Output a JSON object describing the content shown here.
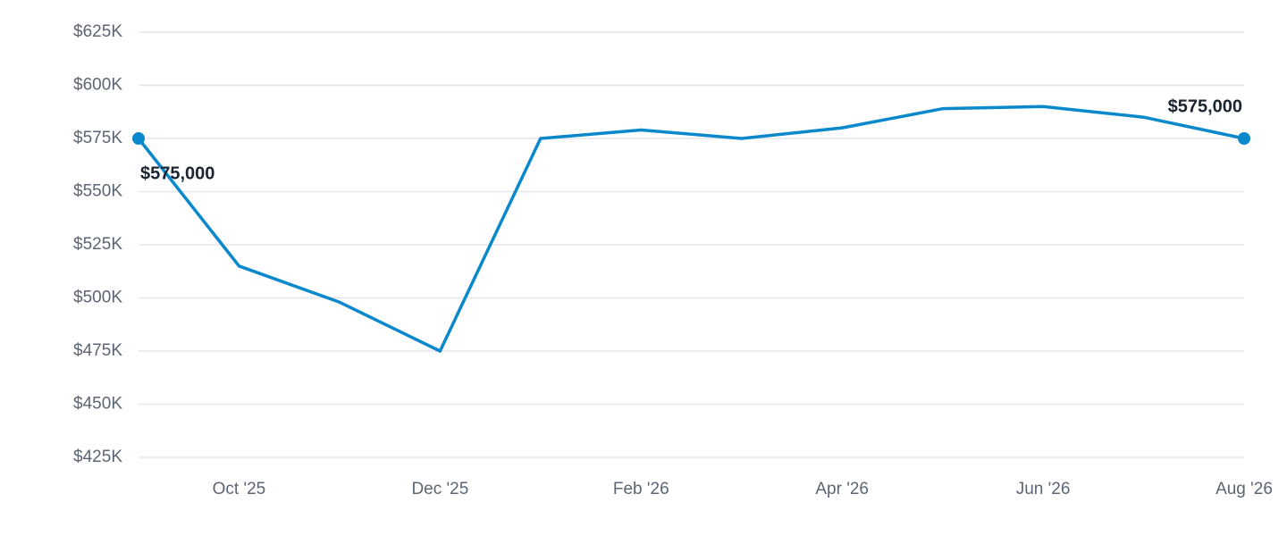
{
  "chart_data": {
    "type": "line",
    "categories": [
      null,
      "Oct '25",
      null,
      "Dec '25",
      null,
      "Feb '26",
      null,
      "Apr '26",
      null,
      "Jun '26",
      null,
      "Aug '26"
    ],
    "values": [
      575000,
      515000,
      498000,
      475000,
      575000,
      579000,
      575000,
      580000,
      589000,
      590000,
      585000,
      575000
    ],
    "value_labels": [
      "$575,000",
      null,
      null,
      null,
      null,
      null,
      null,
      null,
      null,
      null,
      null,
      "$575,000"
    ],
    "color": "#0a88cc",
    "ylim": [
      425000,
      625000
    ],
    "yticks": [
      {
        "value": 425000,
        "label": "$425K"
      },
      {
        "value": 450000,
        "label": "$450K"
      },
      {
        "value": 475000,
        "label": "$475K"
      },
      {
        "value": 500000,
        "label": "$500K"
      },
      {
        "value": 525000,
        "label": "$525K"
      },
      {
        "value": 550000,
        "label": "$550K"
      },
      {
        "value": 575000,
        "label": "$575K"
      },
      {
        "value": 600000,
        "label": "$600K"
      },
      {
        "value": 625000,
        "label": "$625K"
      }
    ],
    "grid": true
  }
}
